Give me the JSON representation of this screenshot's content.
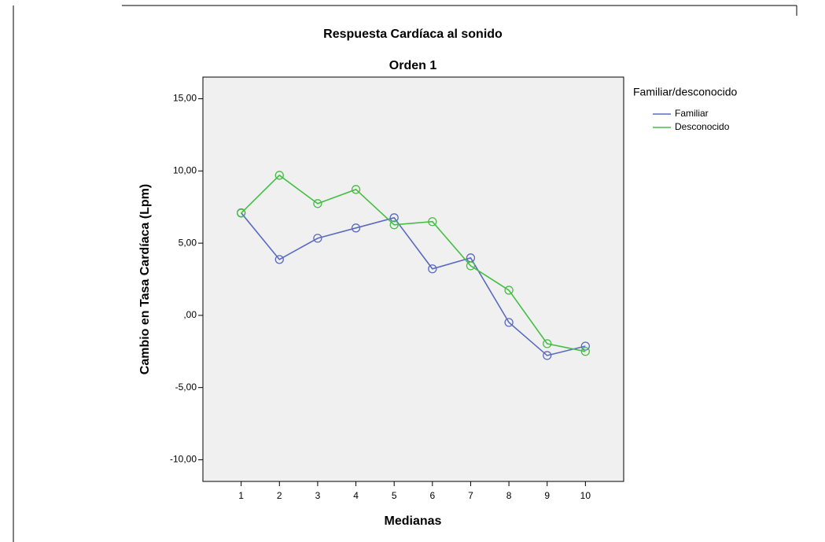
{
  "chart_data": {
    "type": "line",
    "title": "Respuesta Cardíaca al sonido",
    "subtitle": "Orden 1",
    "x_label": "Medianas",
    "y_label": "Cambio en Tasa Cardíaca (Lpm)",
    "legend_title": "Familiar/desconocido",
    "legend": "right",
    "x": [
      1,
      2,
      3,
      4,
      5,
      6,
      7,
      8,
      9,
      10
    ],
    "xlim": [
      0,
      11
    ],
    "xticks": [
      1,
      2,
      3,
      4,
      5,
      6,
      7,
      8,
      9,
      10
    ],
    "ylim": [
      -11.5,
      16.5
    ],
    "yticks": [
      {
        "value": -10,
        "label": "-10,00"
      },
      {
        "value": -5,
        "label": "-5,00"
      },
      {
        "value": 0,
        "label": ",00"
      },
      {
        "value": 5,
        "label": "5,00"
      },
      {
        "value": 10,
        "label": "10,00"
      },
      {
        "value": 15,
        "label": "15,00"
      }
    ],
    "grid": false,
    "series": [
      {
        "name": "Familiar",
        "color": "#5b6bbf",
        "values": [
          7.1,
          3.87,
          5.34,
          6.05,
          6.76,
          3.22,
          3.98,
          -0.49,
          -2.78,
          -2.13
        ]
      },
      {
        "name": "Desconocido",
        "color": "#44bf44",
        "values": [
          7.08,
          9.7,
          7.74,
          8.72,
          6.27,
          6.49,
          3.43,
          1.74,
          -1.96,
          -2.5
        ]
      }
    ]
  }
}
